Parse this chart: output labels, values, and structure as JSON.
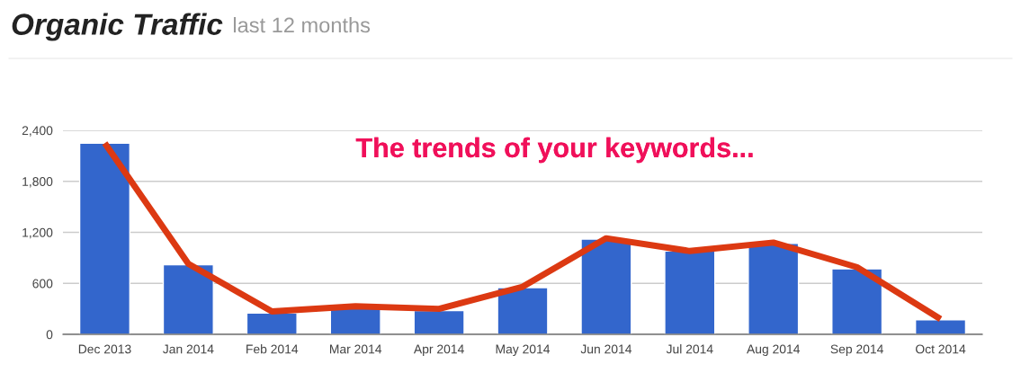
{
  "chart_data": {
    "type": "bar",
    "title": "Organic Traffic",
    "subtitle": "last 12 months",
    "categories": [
      "Dec 2013",
      "Jan 2014",
      "Feb 2014",
      "Mar 2014",
      "Apr 2014",
      "May 2014",
      "Jun 2014",
      "Jul 2014",
      "Aug 2014",
      "Sep 2014",
      "Oct 2014"
    ],
    "series": [
      {
        "color": "#3366cc",
        "values": [
          2250,
          820,
          250,
          310,
          280,
          550,
          1120,
          980,
          1070,
          770,
          170
        ]
      },
      {
        "type": "line",
        "color": "#dc3912",
        "values": [
          2250,
          830,
          270,
          330,
          300,
          560,
          1130,
          980,
          1080,
          790,
          180
        ]
      }
    ],
    "ylim": [
      0,
      2400
    ],
    "yticks": [
      0,
      {
        "value": 600,
        "label": "600"
      },
      {
        "value": 1200,
        "label": "1,200"
      },
      {
        "value": 1800,
        "label": "1,800"
      },
      {
        "value": 2400,
        "label": "2,400"
      }
    ],
    "grid": "y",
    "legend": false,
    "annotations": [
      "The trends of your keywords..."
    ]
  }
}
